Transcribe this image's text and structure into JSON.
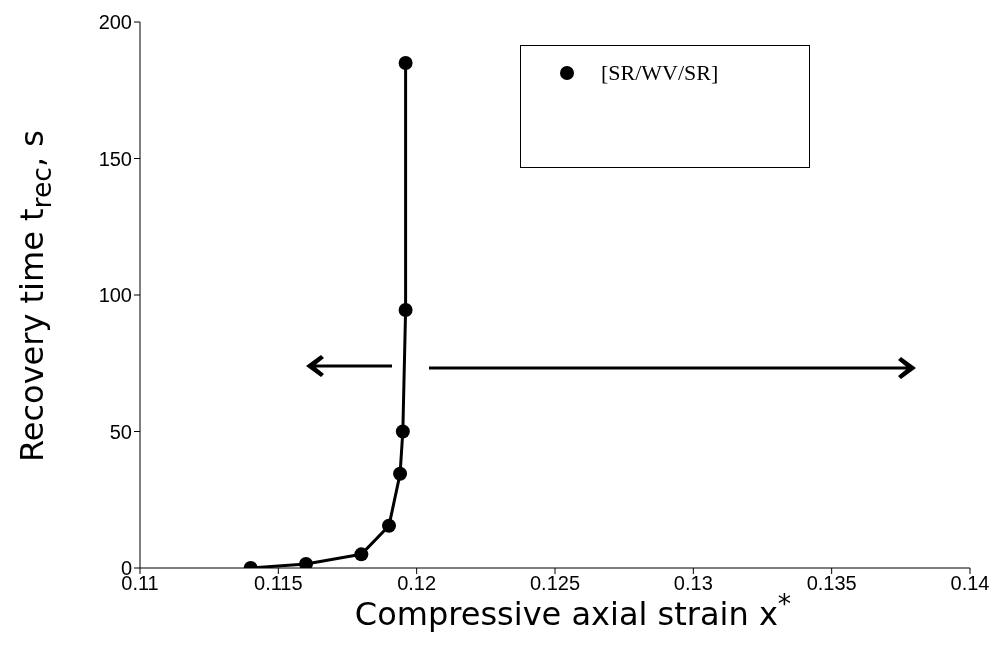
{
  "chart_data": {
    "type": "line",
    "xlabel": "Compressive axial strain x$^{*}$",
    "ylabel": "Recovery time t$_{rec}$, s",
    "x": [
      0.114,
      0.116,
      0.118,
      0.119,
      0.1194,
      0.1195,
      0.1196,
      0.1196
    ],
    "series": [
      {
        "name": "[SR/WV/SR]",
        "color": "#000000",
        "values": [
          0,
          1.5,
          5,
          15.5,
          34.5,
          50,
          94.5,
          185
        ]
      }
    ],
    "xlim": [
      0.11,
      0.14
    ],
    "xticks": [
      0.11,
      0.115,
      0.12,
      0.125,
      0.13,
      0.135,
      0.14
    ],
    "ylim": [
      0,
      200
    ],
    "yticks": [
      0,
      50,
      100,
      150,
      200
    ],
    "grid": false,
    "legend": "top right",
    "marker": "circle",
    "line_style": "solid"
  }
}
